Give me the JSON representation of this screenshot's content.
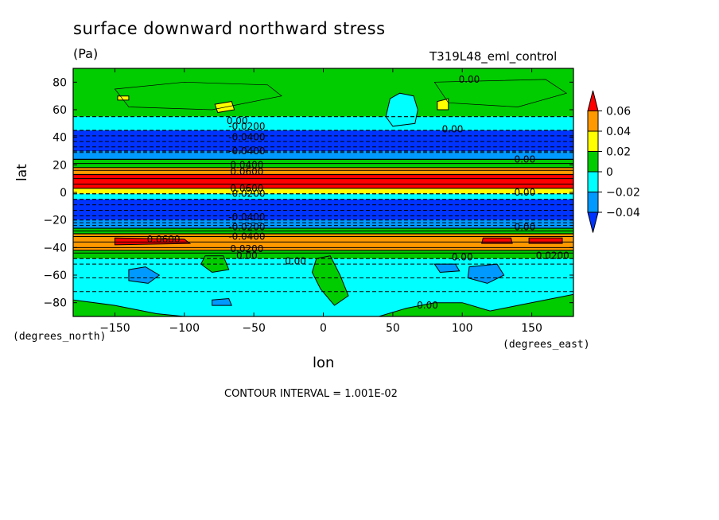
{
  "chart_data": {
    "type": "heatmap",
    "title": "surface downward northward stress",
    "units": "(Pa)",
    "dataset": "T319L48_eml_control",
    "xlabel": "lon",
    "ylabel": "lat",
    "x_units": "(degrees_east)",
    "y_units": "(degrees_north)",
    "xlim": [
      -180,
      180
    ],
    "ylim": [
      -90,
      90
    ],
    "x_ticks": [
      "-150",
      "-100",
      "-50",
      "0",
      "50",
      "100",
      "150"
    ],
    "y_ticks": [
      "80",
      "60",
      "40",
      "20",
      "0",
      "-20",
      "-40",
      "-60",
      "-80"
    ],
    "footer": "CONTOUR INTERVAL = 1.001E-02",
    "colorbar": {
      "labels": [
        "0.06",
        "0.04",
        "0.02",
        "0",
        "-0.02",
        "-0.04"
      ],
      "colors": [
        "#ff0000",
        "#ff9900",
        "#ffff00",
        "#00cc00",
        "#00ffff",
        "#0099ff",
        "#0033ff"
      ]
    },
    "contour_labels": [
      "0.00",
      "-0.0200",
      "-0.0400",
      "0.0400",
      "0.0600",
      "0.0200"
    ],
    "zonal_bands": [
      {
        "lat_from": 90,
        "lat_to": 55,
        "level": "0 to 0.02"
      },
      {
        "lat_from": 55,
        "lat_to": 45,
        "level": "-0.02 to 0"
      },
      {
        "lat_from": 45,
        "lat_to": 30,
        "level": "below -0.04"
      },
      {
        "lat_from": 30,
        "lat_to": 24,
        "level": "-0.04 to -0.02"
      },
      {
        "lat_from": 24,
        "lat_to": 18,
        "level": "0 to 0.02"
      },
      {
        "lat_from": 18,
        "lat_to": 13,
        "level": "0.04 to 0.06"
      },
      {
        "lat_from": 13,
        "lat_to": 3,
        "level": "above 0.06"
      },
      {
        "lat_from": 3,
        "lat_to": -1,
        "level": "0.02 to 0.04"
      },
      {
        "lat_from": -1,
        "lat_to": -5,
        "level": "-0.02 to 0"
      },
      {
        "lat_from": -5,
        "lat_to": -20,
        "level": "below -0.04"
      },
      {
        "lat_from": -20,
        "lat_to": -26,
        "level": "-0.04 to -0.02"
      },
      {
        "lat_from": -26,
        "lat_to": -30,
        "level": "0 to 0.02"
      },
      {
        "lat_from": -30,
        "lat_to": -42,
        "level": "0.02 to 0.06"
      },
      {
        "lat_from": -42,
        "lat_to": -48,
        "level": "0 to 0.02"
      },
      {
        "lat_from": -48,
        "lat_to": -90,
        "level": "-0.02 to 0"
      }
    ]
  }
}
